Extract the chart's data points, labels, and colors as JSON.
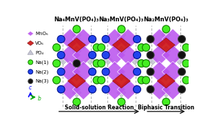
{
  "title1": "Na₄MnV(PO₄)₃",
  "title2": "Na₃MnV(PO₄)₃",
  "title3": "Na₂MnV(PO₄)₃",
  "label_bottom1": "Solid-solution Reaction",
  "label_bottom2": "Biphasic Transition",
  "MnO6_color": "#bb55ee",
  "VO6_color": "#cc1111",
  "PO4_color": "#bbbbcc",
  "Na1_color": "#44ee22",
  "Na2_color": "#2244ee",
  "Na3_color": "#111111",
  "bg_color": "#ffffff",
  "title_fontsize": 6.0,
  "label_fontsize": 5.5,
  "legend_fontsize": 5.0
}
